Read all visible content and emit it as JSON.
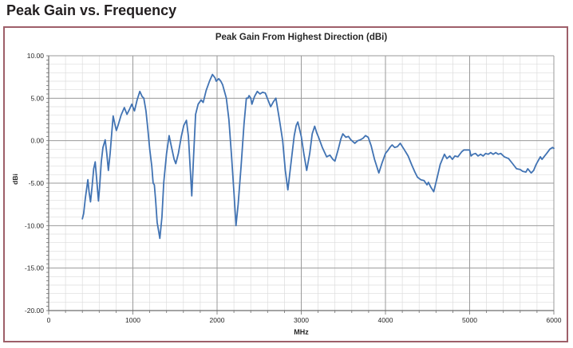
{
  "page": {
    "heading": "Peak Gain vs. Frequency"
  },
  "chart": {
    "title": "Peak Gain From Highest Direction (dBi)",
    "y_axis": {
      "label": "dBi",
      "min": -20,
      "max": 10,
      "major_step": 5,
      "minor_step": 1,
      "tick_labels": [
        "10.00",
        "5.00",
        "0.00",
        "-5.00",
        "-10.00",
        "-15.00",
        "-20.00"
      ]
    },
    "x_axis": {
      "label": "MHz",
      "min": 0,
      "max": 6000,
      "major_step": 1000,
      "minor_step": 200,
      "tick_labels": [
        "0",
        "1000",
        "2000",
        "3000",
        "4000",
        "5000",
        "6000"
      ]
    },
    "colors": {
      "line": "#4173b3",
      "minor_grid": "#dcdcdc",
      "major_grid": "#9a9a9a",
      "axis": "#6e6e6e",
      "panel_border": "#9e5f69"
    }
  },
  "chart_data": {
    "type": "line",
    "title": "Peak Gain From Highest Direction (dBi)",
    "xlabel": "MHz",
    "ylabel": "dBi",
    "xlim": [
      0,
      6000
    ],
    "ylim": [
      -20,
      10
    ],
    "grid": true,
    "legend": false,
    "series": [
      {
        "name": "Peak Gain",
        "points": [
          [
            400,
            -9.2
          ],
          [
            415,
            -8.6
          ],
          [
            435,
            -6.8
          ],
          [
            465,
            -4.6
          ],
          [
            480,
            -6.0
          ],
          [
            497,
            -7.2
          ],
          [
            515,
            -5.5
          ],
          [
            535,
            -3.3
          ],
          [
            553,
            -2.5
          ],
          [
            570,
            -4.5
          ],
          [
            591,
            -7.1
          ],
          [
            605,
            -5.5
          ],
          [
            625,
            -2.5
          ],
          [
            645,
            -0.8
          ],
          [
            671,
            0.1
          ],
          [
            690,
            -1.5
          ],
          [
            709,
            -3.5
          ],
          [
            730,
            -1.5
          ],
          [
            750,
            1.0
          ],
          [
            766,
            2.9
          ],
          [
            785,
            2.0
          ],
          [
            804,
            1.2
          ],
          [
            830,
            2.0
          ],
          [
            860,
            3.0
          ],
          [
            899,
            3.9
          ],
          [
            930,
            3.1
          ],
          [
            960,
            3.7
          ],
          [
            987,
            4.3
          ],
          [
            1019,
            3.5
          ],
          [
            1050,
            4.8
          ],
          [
            1082,
            5.8
          ],
          [
            1110,
            5.2
          ],
          [
            1130,
            5.0
          ],
          [
            1155,
            3.5
          ],
          [
            1177,
            1.4
          ],
          [
            1200,
            -1.0
          ],
          [
            1225,
            -3.0
          ],
          [
            1241,
            -5.0
          ],
          [
            1255,
            -5.2
          ],
          [
            1270,
            -7.0
          ],
          [
            1288,
            -9.6
          ],
          [
            1320,
            -11.5
          ],
          [
            1345,
            -9.0
          ],
          [
            1367,
            -4.9
          ],
          [
            1400,
            -1.5
          ],
          [
            1430,
            0.6
          ],
          [
            1460,
            -0.8
          ],
          [
            1490,
            -2.2
          ],
          [
            1510,
            -2.7
          ],
          [
            1540,
            -1.5
          ],
          [
            1575,
            0.5
          ],
          [
            1605,
            1.8
          ],
          [
            1636,
            2.4
          ],
          [
            1660,
            0.5
          ],
          [
            1680,
            -3.0
          ],
          [
            1700,
            -6.5
          ],
          [
            1720,
            -2.0
          ],
          [
            1745,
            3.1
          ],
          [
            1775,
            4.3
          ],
          [
            1810,
            4.8
          ],
          [
            1835,
            4.5
          ],
          [
            1870,
            5.9
          ],
          [
            1910,
            7.0
          ],
          [
            1945,
            7.8
          ],
          [
            1975,
            7.4
          ],
          [
            1990,
            7.0
          ],
          [
            2020,
            7.3
          ],
          [
            2045,
            7.0
          ],
          [
            2065,
            6.6
          ],
          [
            2110,
            5.0
          ],
          [
            2140,
            2.5
          ],
          [
            2170,
            -1.5
          ],
          [
            2200,
            -6.0
          ],
          [
            2225,
            -10.0
          ],
          [
            2250,
            -7.5
          ],
          [
            2285,
            -3.0
          ],
          [
            2320,
            2.0
          ],
          [
            2348,
            5.0
          ],
          [
            2367,
            5.0
          ],
          [
            2380,
            5.3
          ],
          [
            2400,
            5.0
          ],
          [
            2414,
            4.3
          ],
          [
            2445,
            5.2
          ],
          [
            2478,
            5.8
          ],
          [
            2510,
            5.5
          ],
          [
            2540,
            5.7
          ],
          [
            2573,
            5.6
          ],
          [
            2605,
            4.8
          ],
          [
            2637,
            4.0
          ],
          [
            2670,
            4.6
          ],
          [
            2699,
            5.0
          ],
          [
            2740,
            2.5
          ],
          [
            2779,
            0.0
          ],
          [
            2810,
            -3.5
          ],
          [
            2841,
            -5.8
          ],
          [
            2880,
            -2.5
          ],
          [
            2917,
            0.6
          ],
          [
            2940,
            1.8
          ],
          [
            2959,
            2.2
          ],
          [
            3000,
            0.5
          ],
          [
            3030,
            -1.5
          ],
          [
            3064,
            -3.5
          ],
          [
            3100,
            -1.5
          ],
          [
            3130,
            0.8
          ],
          [
            3159,
            1.7
          ],
          [
            3185,
            0.9
          ],
          [
            3206,
            0.4
          ],
          [
            3250,
            -0.8
          ],
          [
            3301,
            -1.9
          ],
          [
            3340,
            -1.7
          ],
          [
            3375,
            -2.2
          ],
          [
            3400,
            -2.4
          ],
          [
            3440,
            -1.0
          ],
          [
            3470,
            0.2
          ],
          [
            3494,
            0.8
          ],
          [
            3530,
            0.4
          ],
          [
            3560,
            0.5
          ],
          [
            3590,
            0.1
          ],
          [
            3636,
            -0.3
          ],
          [
            3670,
            0.0
          ],
          [
            3700,
            0.1
          ],
          [
            3735,
            0.3
          ],
          [
            3763,
            0.6
          ],
          [
            3795,
            0.4
          ],
          [
            3830,
            -0.6
          ],
          [
            3870,
            -2.2
          ],
          [
            3921,
            -3.8
          ],
          [
            3960,
            -2.6
          ],
          [
            4000,
            -1.5
          ],
          [
            4032,
            -1.1
          ],
          [
            4060,
            -0.7
          ],
          [
            4080,
            -0.5
          ],
          [
            4110,
            -0.8
          ],
          [
            4142,
            -0.7
          ],
          [
            4175,
            -0.3
          ],
          [
            4220,
            -1.0
          ],
          [
            4269,
            -1.8
          ],
          [
            4310,
            -2.8
          ],
          [
            4350,
            -3.7
          ],
          [
            4380,
            -4.3
          ],
          [
            4420,
            -4.6
          ],
          [
            4459,
            -4.7
          ],
          [
            4480,
            -5.0
          ],
          [
            4494,
            -5.2
          ],
          [
            4510,
            -4.9
          ],
          [
            4540,
            -5.5
          ],
          [
            4573,
            -6.0
          ],
          [
            4610,
            -4.5
          ],
          [
            4650,
            -2.8
          ],
          [
            4700,
            -1.6
          ],
          [
            4730,
            -2.1
          ],
          [
            4764,
            -1.8
          ],
          [
            4795,
            -2.2
          ],
          [
            4825,
            -1.8
          ],
          [
            4860,
            -1.9
          ],
          [
            4906,
            -1.3
          ],
          [
            4930,
            -1.1
          ],
          [
            4970,
            -1.1
          ],
          [
            5000,
            -1.1
          ],
          [
            5016,
            -1.8
          ],
          [
            5040,
            -1.6
          ],
          [
            5070,
            -1.5
          ],
          [
            5100,
            -1.8
          ],
          [
            5130,
            -1.6
          ],
          [
            5160,
            -1.8
          ],
          [
            5190,
            -1.5
          ],
          [
            5220,
            -1.6
          ],
          [
            5250,
            -1.4
          ],
          [
            5280,
            -1.6
          ],
          [
            5310,
            -1.4
          ],
          [
            5340,
            -1.6
          ],
          [
            5370,
            -1.5
          ],
          [
            5411,
            -1.9
          ],
          [
            5462,
            -2.1
          ],
          [
            5510,
            -2.7
          ],
          [
            5557,
            -3.3
          ],
          [
            5600,
            -3.4
          ],
          [
            5630,
            -3.6
          ],
          [
            5668,
            -3.7
          ],
          [
            5690,
            -3.3
          ],
          [
            5731,
            -3.8
          ],
          [
            5760,
            -3.5
          ],
          [
            5790,
            -2.8
          ],
          [
            5811,
            -2.4
          ],
          [
            5840,
            -1.9
          ],
          [
            5860,
            -2.2
          ],
          [
            5890,
            -1.8
          ],
          [
            5915,
            -1.5
          ],
          [
            5953,
            -1.0
          ],
          [
            5985,
            -0.8
          ],
          [
            6000,
            -0.9
          ]
        ]
      }
    ]
  }
}
